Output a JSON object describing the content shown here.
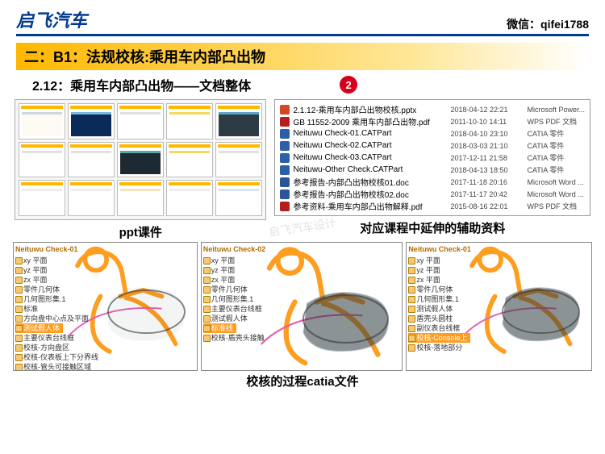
{
  "header": {
    "logo": "启飞汽车",
    "wechat": "微信：qifei1788"
  },
  "title_bar": "二：B1：法规校核:乘用车内部凸出物",
  "subtitle": "2.12：乘用车内部凸出物——文档整体",
  "badge": "2",
  "watermark": "启飞汽车设计",
  "captions": {
    "ppt": "ppt课件",
    "files": "对应课程中延伸的辅助资料",
    "catia": "校核的过程catia文件"
  },
  "colors": {
    "brand": "#003b8f",
    "accent": "#ffb800",
    "badge": "#d6001c",
    "human": "#ff9d1f",
    "magenta": "#e85db3"
  },
  "slide_bodies": [
    {
      "bg": "#fdfbf4",
      "accent": "#cfd8dc"
    },
    {
      "bg": "#0a2a5a",
      "accent": "#7ab8e0"
    },
    {
      "bg": "#ffffff",
      "accent": "#e0e0e0"
    },
    {
      "bg": "#ffffff",
      "accent": "#f6d860"
    },
    {
      "bg": "#2d3b45",
      "accent": "#5fa7c7"
    },
    {
      "bg": "#ffffff",
      "accent": "#e0e0e0"
    },
    {
      "bg": "#ffffff",
      "accent": "#e0e0e0"
    },
    {
      "bg": "#1e2a33",
      "accent": "#56a8a0"
    },
    {
      "bg": "#ffffff",
      "accent": "#f6d860"
    },
    {
      "bg": "#ffffff",
      "accent": "#e0e0e0"
    },
    {
      "bg": "#ffffff",
      "accent": "#e9eef2"
    },
    {
      "bg": "#ffffff",
      "accent": "#e9eef2"
    },
    {
      "bg": "#ffffff",
      "accent": "#f4e3bf"
    },
    {
      "bg": "#ffffff",
      "accent": "#e9eef2"
    },
    {
      "bg": "#ffffff",
      "accent": "#d8e3ec"
    }
  ],
  "files": [
    {
      "icon": "ppt",
      "name": "2.1.12-乘用车内部凸出物校核.pptx",
      "date": "2018-04-12 22:21",
      "type": "Microsoft Power..."
    },
    {
      "icon": "pdf",
      "name": "GB 11552-2009 乘用车内部凸出物.pdf",
      "date": "2011-10-10 14:11",
      "type": "WPS PDF 文档"
    },
    {
      "icon": "cat",
      "name": "Neituwu Check-01.CATPart",
      "date": "2018-04-10 23:10",
      "type": "CATIA 零件"
    },
    {
      "icon": "cat",
      "name": "Neituwu Check-02.CATPart",
      "date": "2018-03-03 21:10",
      "type": "CATIA 零件"
    },
    {
      "icon": "cat",
      "name": "Neituwu Check-03.CATPart",
      "date": "2017-12-11 21:58",
      "type": "CATIA 零件"
    },
    {
      "icon": "cat",
      "name": "Neituwu-Other Check.CATPart",
      "date": "2018-04-13 18:50",
      "type": "CATIA 零件"
    },
    {
      "icon": "doc",
      "name": "参考报告-内部凸出物校核01.doc",
      "date": "2017-11-18 20:16",
      "type": "Microsoft Word ..."
    },
    {
      "icon": "doc",
      "name": "参考报告-内部凸出物校核02.doc",
      "date": "2017-11-17 20:42",
      "type": "Microsoft Word ..."
    },
    {
      "icon": "pdf",
      "name": "参考资料-乘用车内部凸出物解释.pdf",
      "date": "2015-08-16 22:01",
      "type": "WPS PDF 文档"
    }
  ],
  "catia": {
    "box1": {
      "title": "Neituwu Check-01",
      "items": [
        "xy 平面",
        "yz 平面",
        "zx 平面",
        "零件几何体",
        "几何图形集.1",
        "标准",
        "方向盘中心点及平面"
      ],
      "items_hl": [
        "测试假人体"
      ],
      "items2": [
        "主要仪表台线框",
        "校核-方向盘区",
        "校核-仪表板上下分界线",
        "校核-管头可接触区域"
      ]
    },
    "box2": {
      "title": "Neituwu Check-02",
      "items": [
        "xy 平面",
        "yz 平面",
        "zx 平面",
        "零件几何体",
        "几何图形集.1",
        "主要仪表台线框",
        "测试假人体"
      ],
      "items_hl": [
        "标准线"
      ],
      "items2": [
        "校核-盾壳头接触"
      ]
    },
    "box3": {
      "title": "Neituwu Check-01",
      "items": [
        "xy 平面",
        "yz 平面",
        "zx 平面",
        "零件几何体",
        "几何图形集.1",
        "测试假人体",
        "盾壳头圆柱",
        "副仪表台线框"
      ],
      "items_hl": [
        "校核-Console上"
      ],
      "items2": [
        "校核-落地部分"
      ]
    }
  }
}
